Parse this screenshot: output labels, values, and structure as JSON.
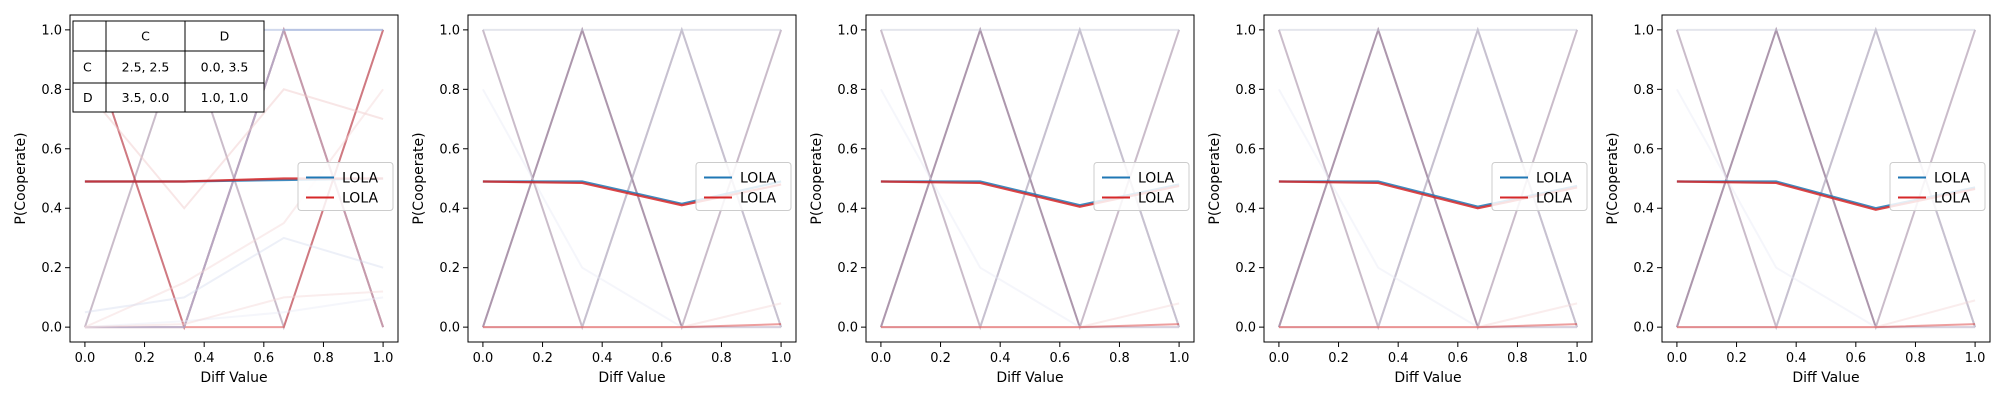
{
  "chart_data": [
    {
      "type": "line",
      "xlabel": "Diff Value",
      "ylabel": "P(Cooperate)",
      "xlim": [
        -0.05,
        1.05
      ],
      "ylim": [
        -0.05,
        1.05
      ],
      "xticks": [
        "0.0",
        "0.2",
        "0.4",
        "0.6",
        "0.8",
        "1.0"
      ],
      "yticks": [
        "0.0",
        "0.2",
        "0.4",
        "0.6",
        "0.8",
        "1.0"
      ],
      "grid": false,
      "legend": {
        "placement": "center-right",
        "entries": [
          {
            "label": "LOLA",
            "color": "#1f77b4"
          },
          {
            "label": "LOLA",
            "color": "#d62728"
          }
        ]
      },
      "x": [
        0.0,
        0.333,
        0.667,
        1.0
      ],
      "series": [
        {
          "color": "#1f77b4",
          "values": [
            0.49,
            0.49,
            0.495,
            0.5
          ]
        },
        {
          "color": "#d62728",
          "values": [
            0.49,
            0.49,
            0.5,
            0.5
          ]
        }
      ],
      "faint_series": [
        {
          "color": "#8a6b8a",
          "values": [
            1,
            0,
            1,
            0
          ]
        },
        {
          "color": "#8a6b8a",
          "values": [
            0,
            1,
            0,
            1
          ]
        },
        {
          "color": "#d62728",
          "values": [
            1,
            0,
            1,
            0
          ]
        },
        {
          "color": "#d62728",
          "values": [
            0,
            0,
            0,
            1
          ]
        },
        {
          "color": "#9aaad6",
          "values": [
            0,
            0,
            1,
            1
          ]
        },
        {
          "color": "#9aaad6",
          "values": [
            1,
            1,
            1,
            1
          ]
        },
        {
          "color": "#b8c4e0",
          "values": [
            0,
            0,
            1,
            0
          ]
        },
        {
          "color": "#f0c8c8",
          "values": [
            0.8,
            0.4,
            0.8,
            0.7
          ]
        },
        {
          "color": "#f4d6d6",
          "values": [
            0,
            0.15,
            0.35,
            0.8
          ]
        },
        {
          "color": "#d8def0",
          "values": [
            0.05,
            0.1,
            0.3,
            0.2
          ]
        },
        {
          "color": "#e8ecf6",
          "values": [
            0,
            0.02,
            0.05,
            0.1
          ]
        },
        {
          "color": "#f4d6d6",
          "values": [
            0,
            0.01,
            0.1,
            0.12
          ]
        }
      ],
      "payoff_table": {
        "header": [
          "",
          "C",
          "D"
        ],
        "rows": [
          [
            "C",
            "2.5, 2.5",
            "0.0, 3.5"
          ],
          [
            "D",
            "3.5, 0.0",
            "1.0, 1.0"
          ]
        ]
      }
    },
    {
      "type": "line",
      "xlabel": "Diff Value",
      "ylabel": "P(Cooperate)",
      "xlim": [
        -0.05,
        1.05
      ],
      "ylim": [
        -0.05,
        1.05
      ],
      "xticks": [
        "0.0",
        "0.2",
        "0.4",
        "0.6",
        "0.8",
        "1.0"
      ],
      "yticks": [
        "0.0",
        "0.2",
        "0.4",
        "0.6",
        "0.8",
        "1.0"
      ],
      "grid": false,
      "legend": {
        "placement": "center-right",
        "entries": [
          {
            "label": "LOLA",
            "color": "#1f77b4"
          },
          {
            "label": "LOLA",
            "color": "#d62728"
          }
        ]
      },
      "x": [
        0.0,
        0.333,
        0.667,
        1.0
      ],
      "series": [
        {
          "color": "#1f77b4",
          "values": [
            0.49,
            0.49,
            0.415,
            0.49
          ]
        },
        {
          "color": "#d62728",
          "values": [
            0.49,
            0.485,
            0.41,
            0.48
          ]
        }
      ],
      "faint_series": [
        {
          "color": "#8a6b8a",
          "values": [
            1,
            0,
            1,
            0
          ]
        },
        {
          "color": "#8a6b8a",
          "values": [
            0,
            1,
            0,
            1
          ]
        },
        {
          "color": "#8a6b8a",
          "values": [
            0,
            1,
            0,
            0
          ]
        },
        {
          "color": "#c4c8d6",
          "values": [
            1,
            1,
            1,
            1
          ]
        },
        {
          "color": "#c4c8d6",
          "values": [
            0,
            0,
            1,
            0
          ]
        },
        {
          "color": "#e8ecf6",
          "values": [
            0.8,
            0.2,
            0,
            0
          ]
        },
        {
          "color": "#f4d6d6",
          "values": [
            0,
            0,
            0,
            0.08
          ]
        },
        {
          "color": "#d62728",
          "values": [
            0,
            0,
            0,
            0.01
          ]
        }
      ],
      "payoff_table": null
    },
    {
      "type": "line",
      "xlabel": "Diff Value",
      "ylabel": "P(Cooperate)",
      "xlim": [
        -0.05,
        1.05
      ],
      "ylim": [
        -0.05,
        1.05
      ],
      "xticks": [
        "0.0",
        "0.2",
        "0.4",
        "0.6",
        "0.8",
        "1.0"
      ],
      "yticks": [
        "0.0",
        "0.2",
        "0.4",
        "0.6",
        "0.8",
        "1.0"
      ],
      "grid": false,
      "legend": {
        "placement": "center-right",
        "entries": [
          {
            "label": "LOLA",
            "color": "#1f77b4"
          },
          {
            "label": "LOLA",
            "color": "#d62728"
          }
        ]
      },
      "x": [
        0.0,
        0.333,
        0.667,
        1.0
      ],
      "series": [
        {
          "color": "#1f77b4",
          "values": [
            0.49,
            0.49,
            0.41,
            0.48
          ]
        },
        {
          "color": "#d62728",
          "values": [
            0.49,
            0.485,
            0.405,
            0.475
          ]
        }
      ],
      "faint_series": [
        {
          "color": "#8a6b8a",
          "values": [
            1,
            0,
            1,
            0
          ]
        },
        {
          "color": "#8a6b8a",
          "values": [
            0,
            1,
            0,
            1
          ]
        },
        {
          "color": "#8a6b8a",
          "values": [
            0,
            1,
            0,
            0
          ]
        },
        {
          "color": "#c4c8d6",
          "values": [
            1,
            1,
            1,
            1
          ]
        },
        {
          "color": "#c4c8d6",
          "values": [
            0,
            0,
            1,
            0
          ]
        },
        {
          "color": "#e8ecf6",
          "values": [
            0.8,
            0.2,
            0,
            0
          ]
        },
        {
          "color": "#f4d6d6",
          "values": [
            0,
            0,
            0,
            0.08
          ]
        },
        {
          "color": "#d62728",
          "values": [
            0,
            0,
            0,
            0.01
          ]
        }
      ],
      "payoff_table": null
    },
    {
      "type": "line",
      "xlabel": "Diff Value",
      "ylabel": "P(Cooperate)",
      "xlim": [
        -0.05,
        1.05
      ],
      "ylim": [
        -0.05,
        1.05
      ],
      "xticks": [
        "0.0",
        "0.2",
        "0.4",
        "0.6",
        "0.8",
        "1.0"
      ],
      "yticks": [
        "0.0",
        "0.2",
        "0.4",
        "0.6",
        "0.8",
        "1.0"
      ],
      "grid": false,
      "legend": {
        "placement": "center-right",
        "entries": [
          {
            "label": "LOLA",
            "color": "#1f77b4"
          },
          {
            "label": "LOLA",
            "color": "#d62728"
          }
        ]
      },
      "x": [
        0.0,
        0.333,
        0.667,
        1.0
      ],
      "series": [
        {
          "color": "#1f77b4",
          "values": [
            0.49,
            0.49,
            0.405,
            0.475
          ]
        },
        {
          "color": "#d62728",
          "values": [
            0.49,
            0.485,
            0.4,
            0.47
          ]
        }
      ],
      "faint_series": [
        {
          "color": "#8a6b8a",
          "values": [
            1,
            0,
            1,
            0
          ]
        },
        {
          "color": "#8a6b8a",
          "values": [
            0,
            1,
            0,
            1
          ]
        },
        {
          "color": "#8a6b8a",
          "values": [
            0,
            1,
            0,
            0
          ]
        },
        {
          "color": "#c4c8d6",
          "values": [
            1,
            1,
            1,
            1
          ]
        },
        {
          "color": "#c4c8d6",
          "values": [
            0,
            0,
            1,
            0
          ]
        },
        {
          "color": "#e8ecf6",
          "values": [
            0.8,
            0.2,
            0,
            0
          ]
        },
        {
          "color": "#f4d6d6",
          "values": [
            0,
            0,
            0,
            0.08
          ]
        },
        {
          "color": "#d62728",
          "values": [
            0,
            0,
            0,
            0.01
          ]
        }
      ],
      "payoff_table": null
    },
    {
      "type": "line",
      "xlabel": "Diff Value",
      "ylabel": "P(Cooperate)",
      "xlim": [
        -0.05,
        1.05
      ],
      "ylim": [
        -0.05,
        1.05
      ],
      "xticks": [
        "0.0",
        "0.2",
        "0.4",
        "0.6",
        "0.8",
        "1.0"
      ],
      "yticks": [
        "0.0",
        "0.2",
        "0.4",
        "0.6",
        "0.8",
        "1.0"
      ],
      "grid": false,
      "legend": {
        "placement": "center-right",
        "entries": [
          {
            "label": "LOLA",
            "color": "#1f77b4"
          },
          {
            "label": "LOLA",
            "color": "#d62728"
          }
        ]
      },
      "x": [
        0.0,
        0.333,
        0.667,
        1.0
      ],
      "series": [
        {
          "color": "#1f77b4",
          "values": [
            0.49,
            0.49,
            0.4,
            0.47
          ]
        },
        {
          "color": "#d62728",
          "values": [
            0.49,
            0.485,
            0.395,
            0.465
          ]
        }
      ],
      "faint_series": [
        {
          "color": "#8a6b8a",
          "values": [
            1,
            0,
            1,
            0
          ]
        },
        {
          "color": "#8a6b8a",
          "values": [
            0,
            1,
            0,
            1
          ]
        },
        {
          "color": "#8a6b8a",
          "values": [
            0,
            1,
            0,
            0
          ]
        },
        {
          "color": "#c4c8d6",
          "values": [
            1,
            1,
            1,
            1
          ]
        },
        {
          "color": "#c4c8d6",
          "values": [
            0,
            0,
            1,
            0
          ]
        },
        {
          "color": "#e8ecf6",
          "values": [
            0.8,
            0.2,
            0,
            0
          ]
        },
        {
          "color": "#f4d6d6",
          "values": [
            0,
            0,
            0,
            0.09
          ]
        },
        {
          "color": "#d62728",
          "values": [
            0,
            0,
            0,
            0.01
          ]
        }
      ],
      "payoff_table": null
    }
  ]
}
